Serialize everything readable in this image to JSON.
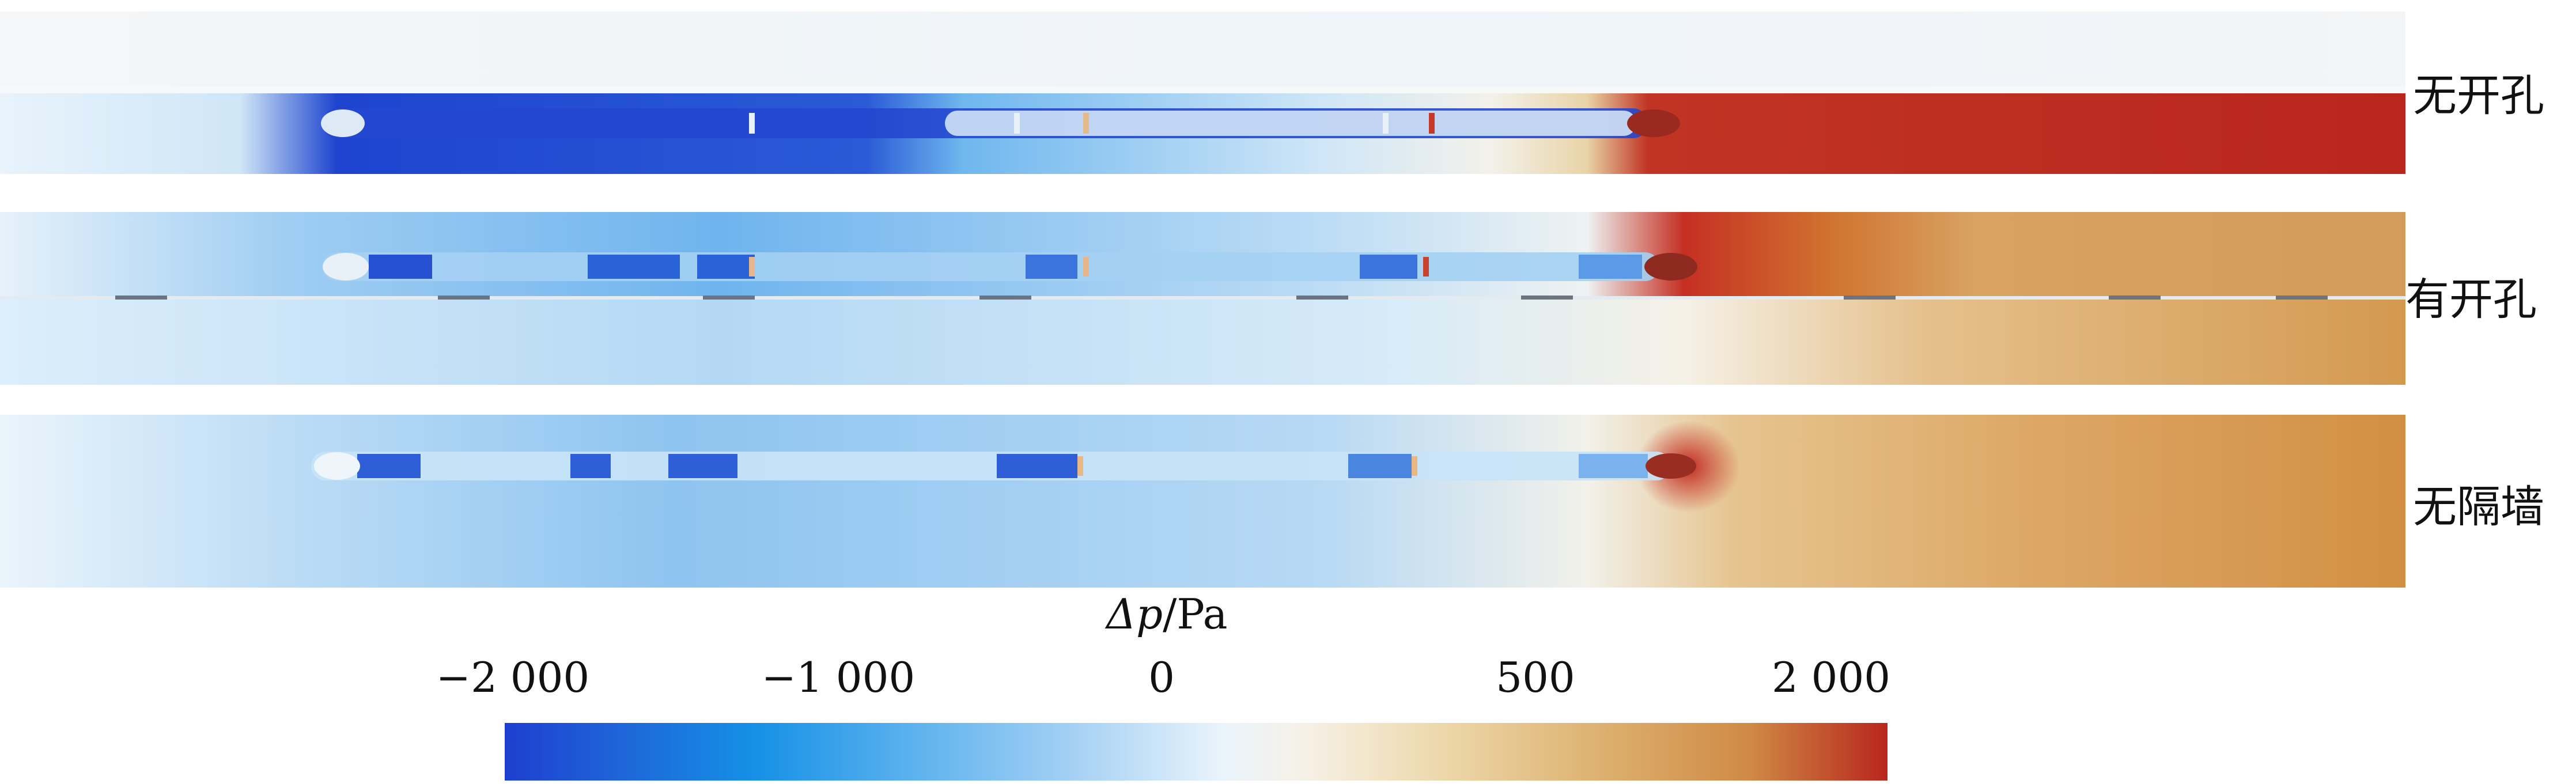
{
  "panels": [
    {
      "label": "无开孔"
    },
    {
      "label": "有开孔"
    },
    {
      "label": "无隔墙"
    }
  ],
  "colorbar": {
    "title_symbol": "Δp",
    "title_unit": "/Pa",
    "ticks": [
      "−2 000",
      "−1 000",
      "0",
      "500",
      "2 000"
    ],
    "colors": [
      "#1d3fcf",
      "#1590e6",
      "#eaf4fb",
      "#dcae6c",
      "#b8261d"
    ]
  }
}
